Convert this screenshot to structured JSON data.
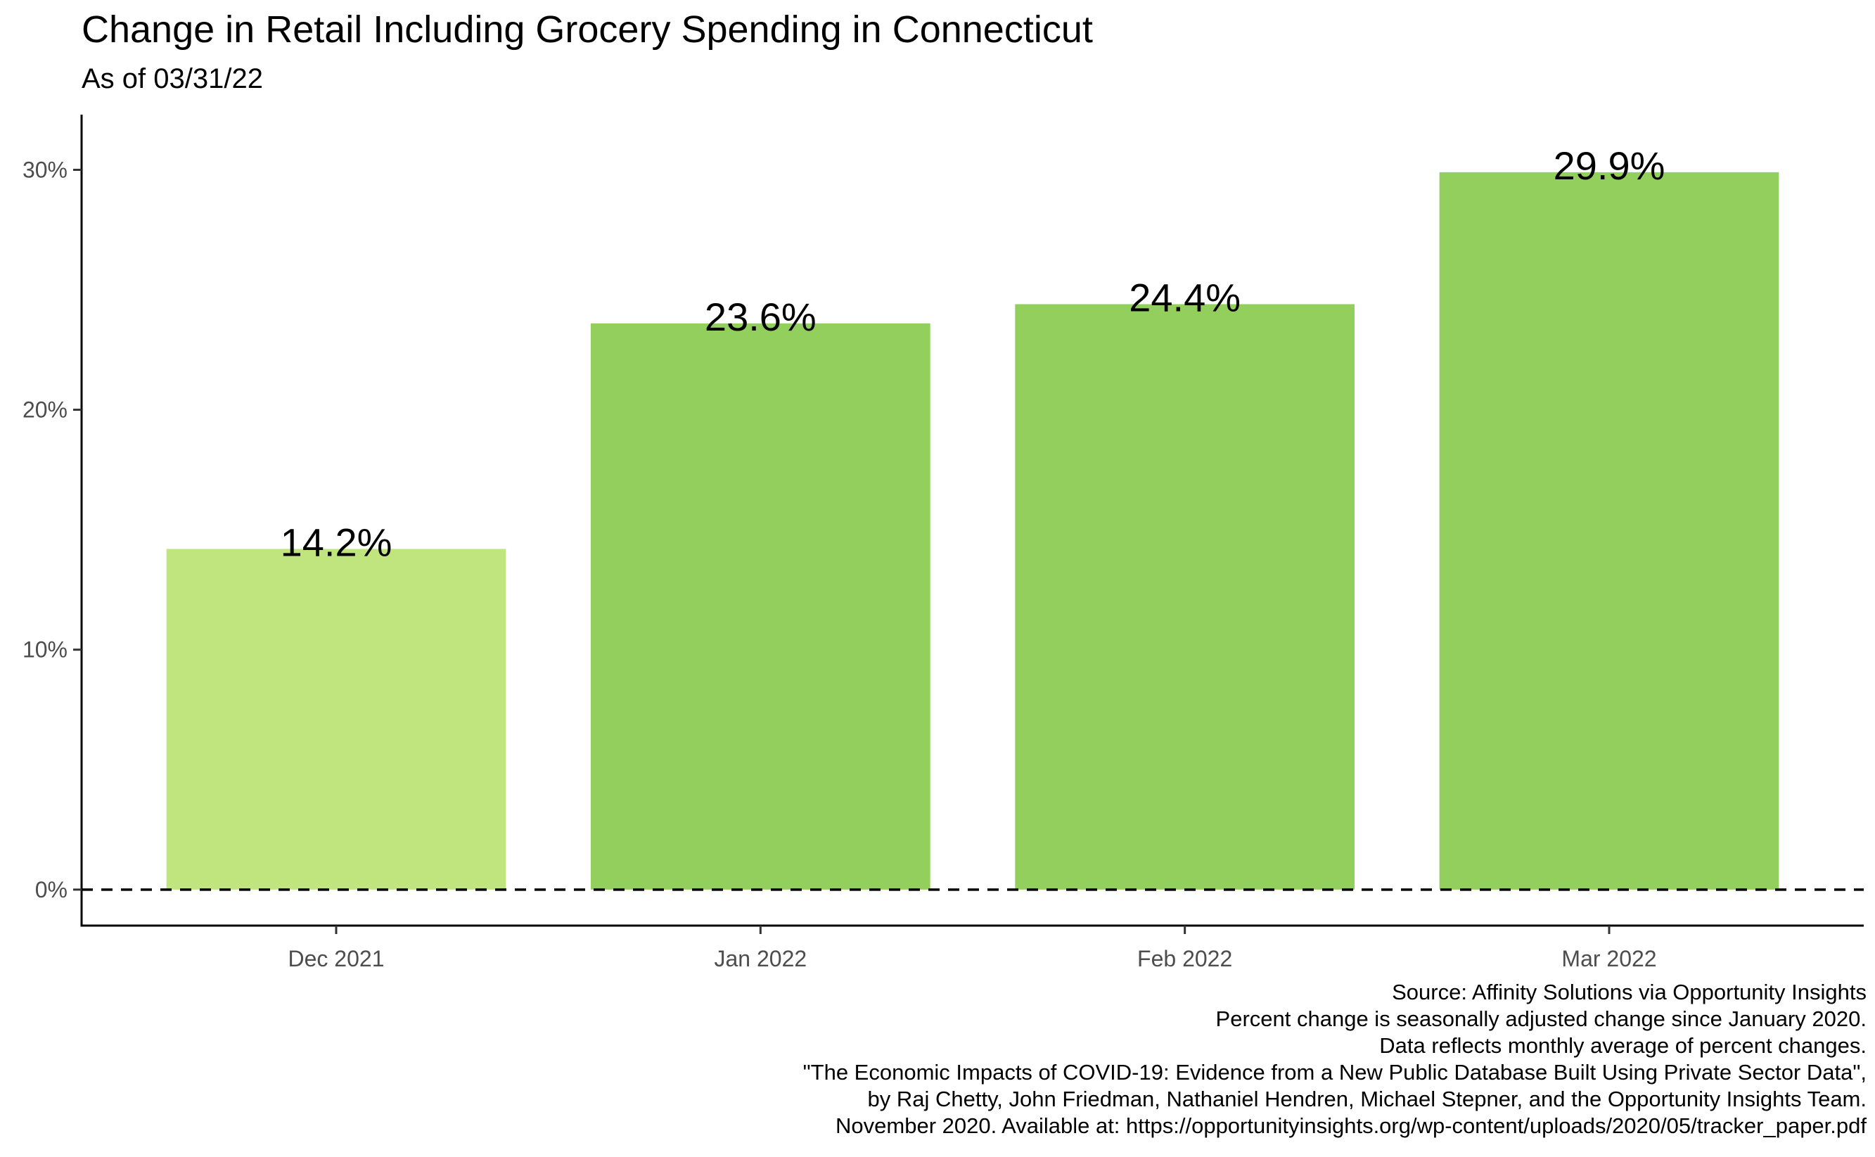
{
  "chart_data": {
    "type": "bar",
    "title": "Change in Retail Including Grocery Spending in Connecticut",
    "subtitle": "As of 03/31/22",
    "xlabel": "",
    "ylabel": "",
    "categories": [
      "Dec 2021",
      "Jan 2022",
      "Feb 2022",
      "Mar 2022"
    ],
    "values": [
      14.2,
      23.6,
      24.4,
      29.9
    ],
    "value_labels": [
      "14.2%",
      "23.6%",
      "24.4%",
      "29.9%"
    ],
    "bar_colors": [
      "#c0e57e",
      "#92cf5c",
      "#92cf5c",
      "#92cf5c"
    ],
    "ylim": [
      -1.5,
      32.3
    ],
    "yticks": [
      0,
      10,
      20,
      30
    ],
    "ytick_labels": [
      "0%",
      "10%",
      "20%",
      "30%"
    ],
    "reference_line": {
      "y": 0,
      "style": "dashed"
    },
    "grid": false,
    "legend": "none"
  },
  "caption": [
    "Source: Affinity Solutions via Opportunity Insights",
    "Percent change is seasonally adjusted change since January 2020.",
    "Data reflects monthly average of percent changes.",
    "\"The Economic Impacts of COVID-19: Evidence from a New Public Database Built Using Private Sector Data\",",
    "by Raj Chetty, John Friedman, Nathaniel Hendren, Michael Stepner, and the Opportunity Insights Team.",
    "November 2020. Available at: https://opportunityinsights.org/wp-content/uploads/2020/05/tracker_paper.pdf"
  ]
}
